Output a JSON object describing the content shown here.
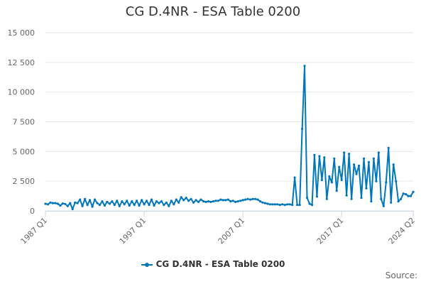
{
  "chart_data": {
    "type": "line",
    "title": "CG D.4NR - ESA Table 0200",
    "source_label": "Source:",
    "y_tick_labels": [
      "0",
      "2 500",
      "5 000",
      "7 500",
      "10 000",
      "12 500",
      "15 000"
    ],
    "y_ticks": [
      0,
      2500,
      5000,
      7500,
      10000,
      12500,
      15000
    ],
    "ylim": [
      0,
      15000
    ],
    "x_tick_labels": [
      "1987 Q1",
      "1997 Q1",
      "2007 Q1",
      "2017 Q1",
      "2024 Q2"
    ],
    "x_tick_positions": [
      "1987 Q1",
      "1997 Q1",
      "2007 Q1",
      "2017 Q1",
      "2024 Q2"
    ],
    "grid": "horizontal",
    "legend_position": "bottom",
    "colors": {
      "series": "#0077bb",
      "grid": "#e6e6e6",
      "axis": "#ccd6eb",
      "text": "#666666"
    },
    "series": [
      {
        "name": "CG D.4NR - ESA Table 0200",
        "x": [
          "1987 Q1",
          "1987 Q2",
          "1987 Q3",
          "1987 Q4",
          "1988 Q1",
          "1988 Q2",
          "1988 Q3",
          "1988 Q4",
          "1989 Q1",
          "1989 Q2",
          "1989 Q3",
          "1989 Q4",
          "1990 Q1",
          "1990 Q2",
          "1990 Q3",
          "1990 Q4",
          "1991 Q1",
          "1991 Q2",
          "1991 Q3",
          "1991 Q4",
          "1992 Q1",
          "1992 Q2",
          "1992 Q3",
          "1992 Q4",
          "1993 Q1",
          "1993 Q2",
          "1993 Q3",
          "1993 Q4",
          "1994 Q1",
          "1994 Q2",
          "1994 Q3",
          "1994 Q4",
          "1995 Q1",
          "1995 Q2",
          "1995 Q3",
          "1995 Q4",
          "1996 Q1",
          "1996 Q2",
          "1996 Q3",
          "1996 Q4",
          "1997 Q1",
          "1997 Q2",
          "1997 Q3",
          "1997 Q4",
          "1998 Q1",
          "1998 Q2",
          "1998 Q3",
          "1998 Q4",
          "1999 Q1",
          "1999 Q2",
          "1999 Q3",
          "1999 Q4",
          "2000 Q1",
          "2000 Q2",
          "2000 Q3",
          "2000 Q4",
          "2001 Q1",
          "2001 Q2",
          "2001 Q3",
          "2001 Q4",
          "2002 Q1",
          "2002 Q2",
          "2002 Q3",
          "2002 Q4",
          "2003 Q1",
          "2003 Q2",
          "2003 Q3",
          "2003 Q4",
          "2004 Q1",
          "2004 Q2",
          "2004 Q3",
          "2004 Q4",
          "2005 Q1",
          "2005 Q2",
          "2005 Q3",
          "2005 Q4",
          "2006 Q1",
          "2006 Q2",
          "2006 Q3",
          "2006 Q4",
          "2007 Q1",
          "2007 Q2",
          "2007 Q3",
          "2007 Q4",
          "2008 Q1",
          "2008 Q2",
          "2008 Q3",
          "2008 Q4",
          "2009 Q1",
          "2009 Q2",
          "2009 Q3",
          "2009 Q4",
          "2010 Q1",
          "2010 Q2",
          "2010 Q3",
          "2010 Q4",
          "2011 Q1",
          "2011 Q2",
          "2011 Q3",
          "2011 Q4",
          "2012 Q1",
          "2012 Q2",
          "2012 Q3",
          "2012 Q4",
          "2013 Q1",
          "2013 Q2",
          "2013 Q3",
          "2013 Q4",
          "2014 Q1",
          "2014 Q2",
          "2014 Q3",
          "2014 Q4",
          "2015 Q1",
          "2015 Q2",
          "2015 Q3",
          "2015 Q4",
          "2016 Q1",
          "2016 Q2",
          "2016 Q3",
          "2016 Q4",
          "2017 Q1",
          "2017 Q2",
          "2017 Q3",
          "2017 Q4",
          "2018 Q1",
          "2018 Q2",
          "2018 Q3",
          "2018 Q4",
          "2019 Q1",
          "2019 Q2",
          "2019 Q3",
          "2019 Q4",
          "2020 Q1",
          "2020 Q2",
          "2020 Q3",
          "2020 Q4",
          "2021 Q1",
          "2021 Q2",
          "2021 Q3",
          "2021 Q4",
          "2022 Q1",
          "2022 Q2",
          "2022 Q3",
          "2022 Q4",
          "2023 Q1",
          "2023 Q2",
          "2023 Q3",
          "2023 Q4",
          "2024 Q1",
          "2024 Q2"
        ],
        "values": [
          600,
          550,
          700,
          650,
          650,
          600,
          450,
          620,
          580,
          400,
          650,
          150,
          700,
          650,
          950,
          400,
          1000,
          500,
          900,
          350,
          950,
          650,
          500,
          800,
          450,
          750,
          600,
          800,
          500,
          850,
          400,
          800,
          550,
          850,
          450,
          800,
          500,
          850,
          450,
          900,
          550,
          850,
          500,
          950,
          450,
          800,
          650,
          800,
          500,
          700,
          400,
          850,
          550,
          950,
          700,
          1150,
          900,
          1100,
          850,
          1000,
          700,
          900,
          750,
          950,
          800,
          750,
          800,
          750,
          800,
          850,
          850,
          950,
          900,
          900,
          950,
          800,
          850,
          750,
          800,
          850,
          900,
          950,
          1000,
          950,
          1000,
          1000,
          950,
          800,
          700,
          650,
          600,
          550,
          550,
          550,
          550,
          500,
          550,
          500,
          550,
          550,
          500,
          2800,
          500,
          500,
          6900,
          12200,
          1100,
          600,
          500,
          4700,
          1200,
          4600,
          2600,
          4500,
          1000,
          2900,
          2400,
          4400,
          1700,
          3700,
          2600,
          4900,
          1300,
          4800,
          1000,
          3900,
          3100,
          3800,
          1100,
          4400,
          1900,
          4100,
          800,
          4400,
          2500,
          4900,
          1000,
          400,
          2400,
          5300,
          700,
          3900,
          2500,
          800,
          1000,
          1450,
          1400,
          1250,
          1250,
          1600
        ]
      }
    ]
  }
}
